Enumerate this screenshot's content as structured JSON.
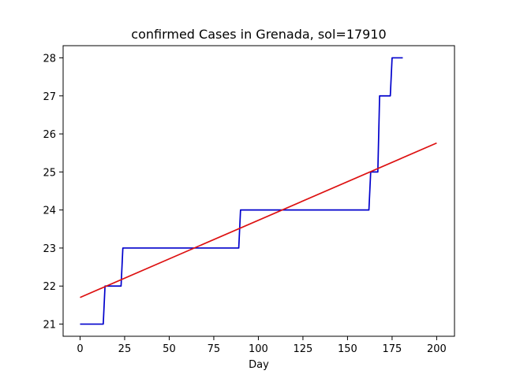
{
  "chart_data": {
    "type": "line",
    "title": "confirmed Cases in Grenada, sol=17910",
    "xlabel": "Day",
    "ylabel": "",
    "xlim": [
      -9.5,
      210
    ],
    "ylim": [
      20.68,
      28.32
    ],
    "xticks": [
      0,
      25,
      50,
      75,
      100,
      125,
      150,
      175,
      200
    ],
    "yticks": [
      21,
      22,
      23,
      24,
      25,
      26,
      27,
      28
    ],
    "grid": false,
    "series": [
      {
        "color": "#0000cc",
        "style": "step",
        "x": [
          0,
          13,
          14,
          23,
          24,
          89,
          90,
          162,
          163,
          167,
          168,
          174,
          175,
          181
        ],
        "y": [
          21,
          21,
          22,
          22,
          23,
          23,
          24,
          24,
          25,
          25,
          27,
          27,
          28,
          28
        ]
      },
      {
        "color": "#dd1111",
        "style": "line",
        "x": [
          0,
          200
        ],
        "y": [
          21.7,
          25.76
        ]
      }
    ]
  }
}
